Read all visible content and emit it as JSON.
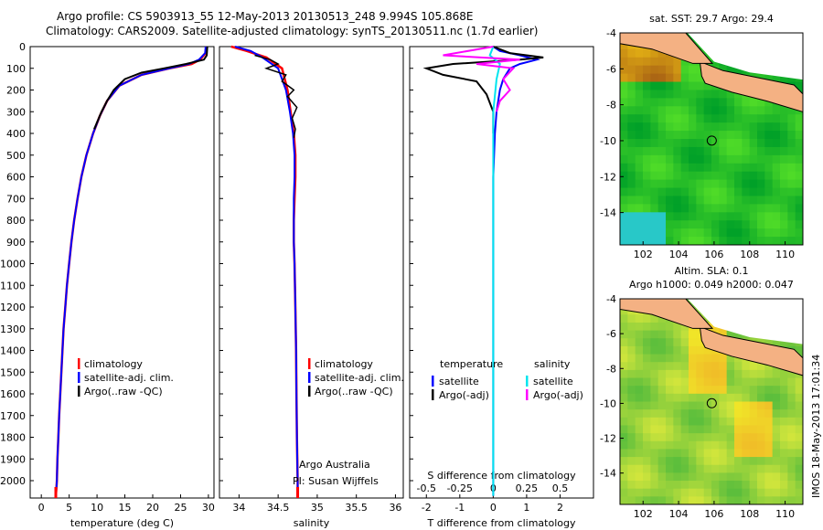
{
  "title_line1": "Argo profile: CS 5903913_55 12-May-2013 20130513_248 9.994S 105.868E",
  "title_line2": "Climatology: CARS2009. Satellite-adjusted climatology: synTS_20130511.nc (1.7d earlier)",
  "side_stamp": "IMOS 18-May-2013 17:01:34",
  "colors": {
    "clim": "#ff0000",
    "sat": "#0000ff",
    "argo": "#000000",
    "sal_sat": "#00e5ee",
    "sal_argo": "#ff00ff",
    "land": "#f4b183"
  },
  "chart_data": [
    {
      "type": "line",
      "id": "temperature",
      "xlabel": "temperature (deg C)",
      "xlim": [
        -2,
        31
      ],
      "ylim": [
        2080,
        0
      ],
      "xticks": [
        0,
        5,
        10,
        15,
        20,
        25,
        30
      ],
      "yticks": [
        0,
        100,
        200,
        300,
        400,
        500,
        600,
        700,
        800,
        900,
        1000,
        1100,
        1200,
        1300,
        1400,
        1500,
        1600,
        1700,
        1800,
        1900,
        2000
      ],
      "legend": {
        "entries": [
          "climatology",
          "satellite-adj. clim.",
          "Argo(..raw -QC)"
        ]
      },
      "series": [
        {
          "name": "climatology",
          "x": [
            29.6,
            29.5,
            28.5,
            27,
            23,
            18,
            14,
            11.8,
            10.5,
            9.3,
            8.1,
            7.2,
            6.5,
            5.9,
            5.4,
            5.0,
            4.6,
            4.3,
            4.0,
            3.8,
            3.6,
            3.4,
            3.2,
            3.05,
            2.9,
            2.8,
            2.7,
            2.6
          ],
          "y": [
            0,
            30,
            60,
            80,
            100,
            130,
            180,
            250,
            320,
            400,
            500,
            600,
            700,
            800,
            900,
            1000,
            1100,
            1200,
            1300,
            1400,
            1500,
            1600,
            1700,
            1800,
            1900,
            2000,
            2040,
            2070
          ]
        },
        {
          "name": "satellite-adj. clim.",
          "x": [
            29.5,
            29.4,
            28.3,
            26.5,
            23,
            18,
            14,
            11.8,
            10.5,
            9.3,
            8.1,
            7.2,
            6.5,
            5.9,
            5.4,
            5.0,
            4.6,
            4.3,
            4.0,
            3.8,
            3.6,
            3.4,
            3.2,
            3.05,
            2.9,
            2.8,
            2.7,
            2.6
          ],
          "y": [
            0,
            30,
            60,
            80,
            100,
            130,
            180,
            250,
            320,
            400,
            500,
            600,
            700,
            800,
            900,
            1000,
            1100,
            1200,
            1300,
            1400,
            1500,
            1600,
            1700,
            1800,
            1900,
            2000,
            2040,
            2070
          ]
        },
        {
          "name": "Argo(..raw -QC)",
          "x": [
            29.8,
            29.7,
            29.2,
            26,
            22,
            18,
            15,
            13,
            11.8,
            10.8,
            9.5
          ],
          "y": [
            0,
            40,
            60,
            80,
            100,
            120,
            150,
            200,
            250,
            300,
            380
          ]
        }
      ]
    },
    {
      "type": "line",
      "id": "salinity",
      "xlabel": "salinity",
      "xlim": [
        33.75,
        36.1
      ],
      "ylim": [
        2080,
        0
      ],
      "xticks": [
        34,
        34.5,
        35,
        35.5,
        36
      ],
      "legend": {
        "entries": [
          "climatology",
          "satellite-adj. clim.",
          "Argo(..raw -QC)"
        ]
      },
      "annotation": [
        "Argo Australia",
        "PI: Susan Wijffels"
      ],
      "series": [
        {
          "name": "climatology",
          "x": [
            33.9,
            34.1,
            34.35,
            34.55,
            34.62,
            34.66,
            34.7,
            34.72,
            34.72,
            34.71,
            34.7,
            34.7,
            34.71,
            34.72,
            34.73,
            34.735,
            34.74,
            34.745,
            34.75,
            34.75
          ],
          "y": [
            0,
            20,
            50,
            100,
            200,
            300,
            400,
            500,
            600,
            700,
            800,
            900,
            1000,
            1200,
            1400,
            1600,
            1800,
            1900,
            2000,
            2070
          ]
        },
        {
          "name": "satellite-adj. clim.",
          "x": [
            33.95,
            34.15,
            34.3,
            34.5,
            34.6,
            34.65,
            34.69,
            34.71,
            34.71,
            34.7,
            34.7,
            34.7,
            34.71,
            34.72,
            34.73,
            34.735,
            34.74,
            34.745,
            34.75,
            34.75
          ],
          "y": [
            0,
            20,
            50,
            100,
            200,
            300,
            400,
            500,
            600,
            700,
            800,
            900,
            1000,
            1200,
            1400,
            1600,
            1800,
            1900,
            2000,
            2070
          ]
        },
        {
          "name": "Argo(..raw -QC)",
          "x": [
            34.2,
            34.4,
            34.5,
            34.35,
            34.6,
            34.55,
            34.7,
            34.62,
            34.74,
            34.68,
            34.72,
            34.7
          ],
          "y": [
            40,
            60,
            80,
            100,
            130,
            160,
            200,
            230,
            280,
            330,
            380,
            420
          ]
        }
      ]
    },
    {
      "type": "line",
      "id": "difference",
      "xlabel": "T difference from climatology",
      "x2label": "S difference from climatology",
      "xlim": [
        -2.5,
        3
      ],
      "ylim": [
        2080,
        0
      ],
      "xticks": [
        -2,
        -1,
        0,
        1,
        2
      ],
      "x2tick_labels": [
        "-0.5",
        "-0.25",
        "0",
        "0.25",
        "0.5"
      ],
      "legend": {
        "groups": [
          "temperature",
          "salinity"
        ],
        "entries": [
          "satellite",
          "Argo(-adj)",
          "satellite",
          "Argo(-adj)"
        ]
      },
      "series": [
        {
          "name": "temperature satellite",
          "x": [
            0,
            0.2,
            0.8,
            1.3,
            0.8,
            0.5,
            0.3,
            0.2,
            0.1,
            0.05,
            0,
            0,
            0
          ],
          "y": [
            0,
            20,
            40,
            60,
            80,
            100,
            150,
            200,
            300,
            400,
            600,
            1200,
            2070
          ]
        },
        {
          "name": "temperature Argo(-adj)",
          "x": [
            0,
            0.5,
            1.5,
            0.8,
            -1.2,
            -2.0,
            -1.5,
            -0.5,
            -0.2,
            0,
            0
          ],
          "y": [
            0,
            30,
            50,
            60,
            80,
            100,
            130,
            160,
            220,
            300,
            400
          ]
        },
        {
          "name": "salinity satellite",
          "x": [
            0,
            -0.1,
            0.2,
            0.1,
            0,
            0,
            0
          ],
          "y": [
            0,
            40,
            80,
            150,
            300,
            800,
            2070
          ]
        },
        {
          "name": "salinity Argo(-adj)",
          "x": [
            0,
            -1.5,
            0.8,
            -0.5,
            0.6,
            0.3,
            0.5,
            0.2,
            0.1
          ],
          "y": [
            0,
            40,
            60,
            80,
            100,
            150,
            200,
            250,
            300
          ]
        }
      ]
    },
    {
      "type": "heatmap",
      "id": "sst-map",
      "title": "sat. SST: 29.7  Argo: 29.4",
      "xlim": [
        100.7,
        111
      ],
      "ylim": [
        -15.8,
        -4
      ],
      "xticks": [
        102,
        104,
        106,
        108,
        110
      ],
      "yticks": [
        -4,
        -6,
        -8,
        -10,
        -12,
        -14
      ],
      "marker": {
        "lon": 105.868,
        "lat": -9.994
      }
    },
    {
      "type": "heatmap",
      "id": "sla-map",
      "title": "Altim. SLA: 0.1",
      "subtitle": "Argo h1000: 0.049 h2000: 0.047",
      "xlim": [
        100.7,
        111
      ],
      "ylim": [
        -15.8,
        -4
      ],
      "xticks": [
        102,
        104,
        106,
        108,
        110
      ],
      "yticks": [
        -4,
        -6,
        -8,
        -10,
        -12,
        -14
      ],
      "marker": {
        "lon": 105.868,
        "lat": -9.994
      }
    }
  ]
}
